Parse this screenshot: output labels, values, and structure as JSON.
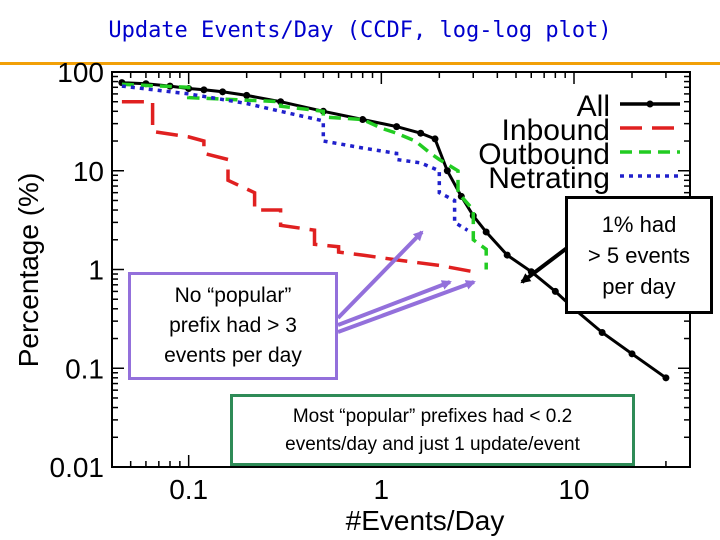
{
  "slide": {
    "title": "Update Events/Day (CCDF, log-log plot)",
    "accent_color": "#f2a007",
    "title_color": "#0000cc"
  },
  "chart_data": {
    "type": "line",
    "title": "",
    "xlabel": "#Events/Day",
    "ylabel": "Percentage (%)",
    "xscale": "log",
    "yscale": "log",
    "xlim": [
      0.04,
      40
    ],
    "ylim": [
      0.01,
      100
    ],
    "xticks": [
      0.1,
      1,
      10
    ],
    "xtick_labels": [
      "0.1",
      "1",
      "10"
    ],
    "yticks": [
      0.01,
      0.1,
      1,
      10,
      100
    ],
    "ytick_labels": [
      "0.01",
      "0.1",
      "1",
      "10",
      "100"
    ],
    "legend_position": "top-right",
    "series": [
      {
        "name": "All",
        "color": "#000000",
        "style": "solid-markers",
        "x": [
          0.045,
          0.06,
          0.08,
          0.1,
          0.12,
          0.15,
          0.2,
          0.3,
          0.5,
          0.8,
          1.2,
          1.6,
          1.9,
          2.2,
          2.6,
          3.0,
          3.5,
          4.5,
          6.0,
          8.0,
          10,
          14,
          20,
          30
        ],
        "y": [
          78,
          76,
          72,
          68,
          66,
          63,
          58,
          50,
          40,
          33,
          28,
          24,
          21,
          10,
          5.5,
          3.5,
          2.4,
          1.4,
          0.95,
          0.6,
          0.4,
          0.23,
          0.14,
          0.08
        ]
      },
      {
        "name": "Inbound",
        "color": "#e02020",
        "style": "long-dash",
        "x": [
          0.045,
          0.065,
          0.065,
          0.1,
          0.12,
          0.12,
          0.16,
          0.16,
          0.22,
          0.22,
          0.3,
          0.3,
          0.45,
          0.45,
          0.6,
          0.6,
          0.8,
          1.2,
          2.0,
          3.0
        ],
        "y": [
          50,
          50,
          25,
          22,
          20,
          15,
          13,
          8,
          6,
          4,
          4,
          2.8,
          2.5,
          1.8,
          1.7,
          1.5,
          1.4,
          1.25,
          1.1,
          0.95
        ]
      },
      {
        "name": "Outbound",
        "color": "#22cc22",
        "style": "dash",
        "x": [
          0.045,
          0.1,
          0.1,
          0.3,
          0.3,
          0.5,
          0.5,
          0.8,
          1.0,
          1.2,
          1.5,
          1.8,
          2.0,
          2.5,
          2.5,
          3.0,
          3.0,
          3.5,
          3.5
        ],
        "y": [
          75,
          70,
          55,
          50,
          45,
          40,
          35,
          33,
          27,
          24,
          20,
          15,
          13,
          10,
          6,
          4,
          2.0,
          1.6,
          1.0
        ]
      },
      {
        "name": "Netrating",
        "color": "#2020cc",
        "style": "dot",
        "x": [
          0.045,
          0.1,
          0.2,
          0.3,
          0.5,
          0.5,
          0.8,
          1.2,
          1.2,
          1.6,
          2.0,
          2.0,
          2.4,
          2.4,
          2.8
        ],
        "y": [
          72,
          60,
          48,
          40,
          32,
          20,
          17,
          15,
          13,
          12,
          10,
          6,
          5,
          3,
          2.5
        ]
      }
    ],
    "annotations": {
      "popular": [
        "No “popular”",
        "prefix had > 3",
        "events per day"
      ],
      "five": [
        "1% had",
        "> 5 events",
        "per day"
      ],
      "most": [
        "Most “popular” prefixes had < 0.2",
        "events/day and just 1 update/event"
      ]
    }
  }
}
